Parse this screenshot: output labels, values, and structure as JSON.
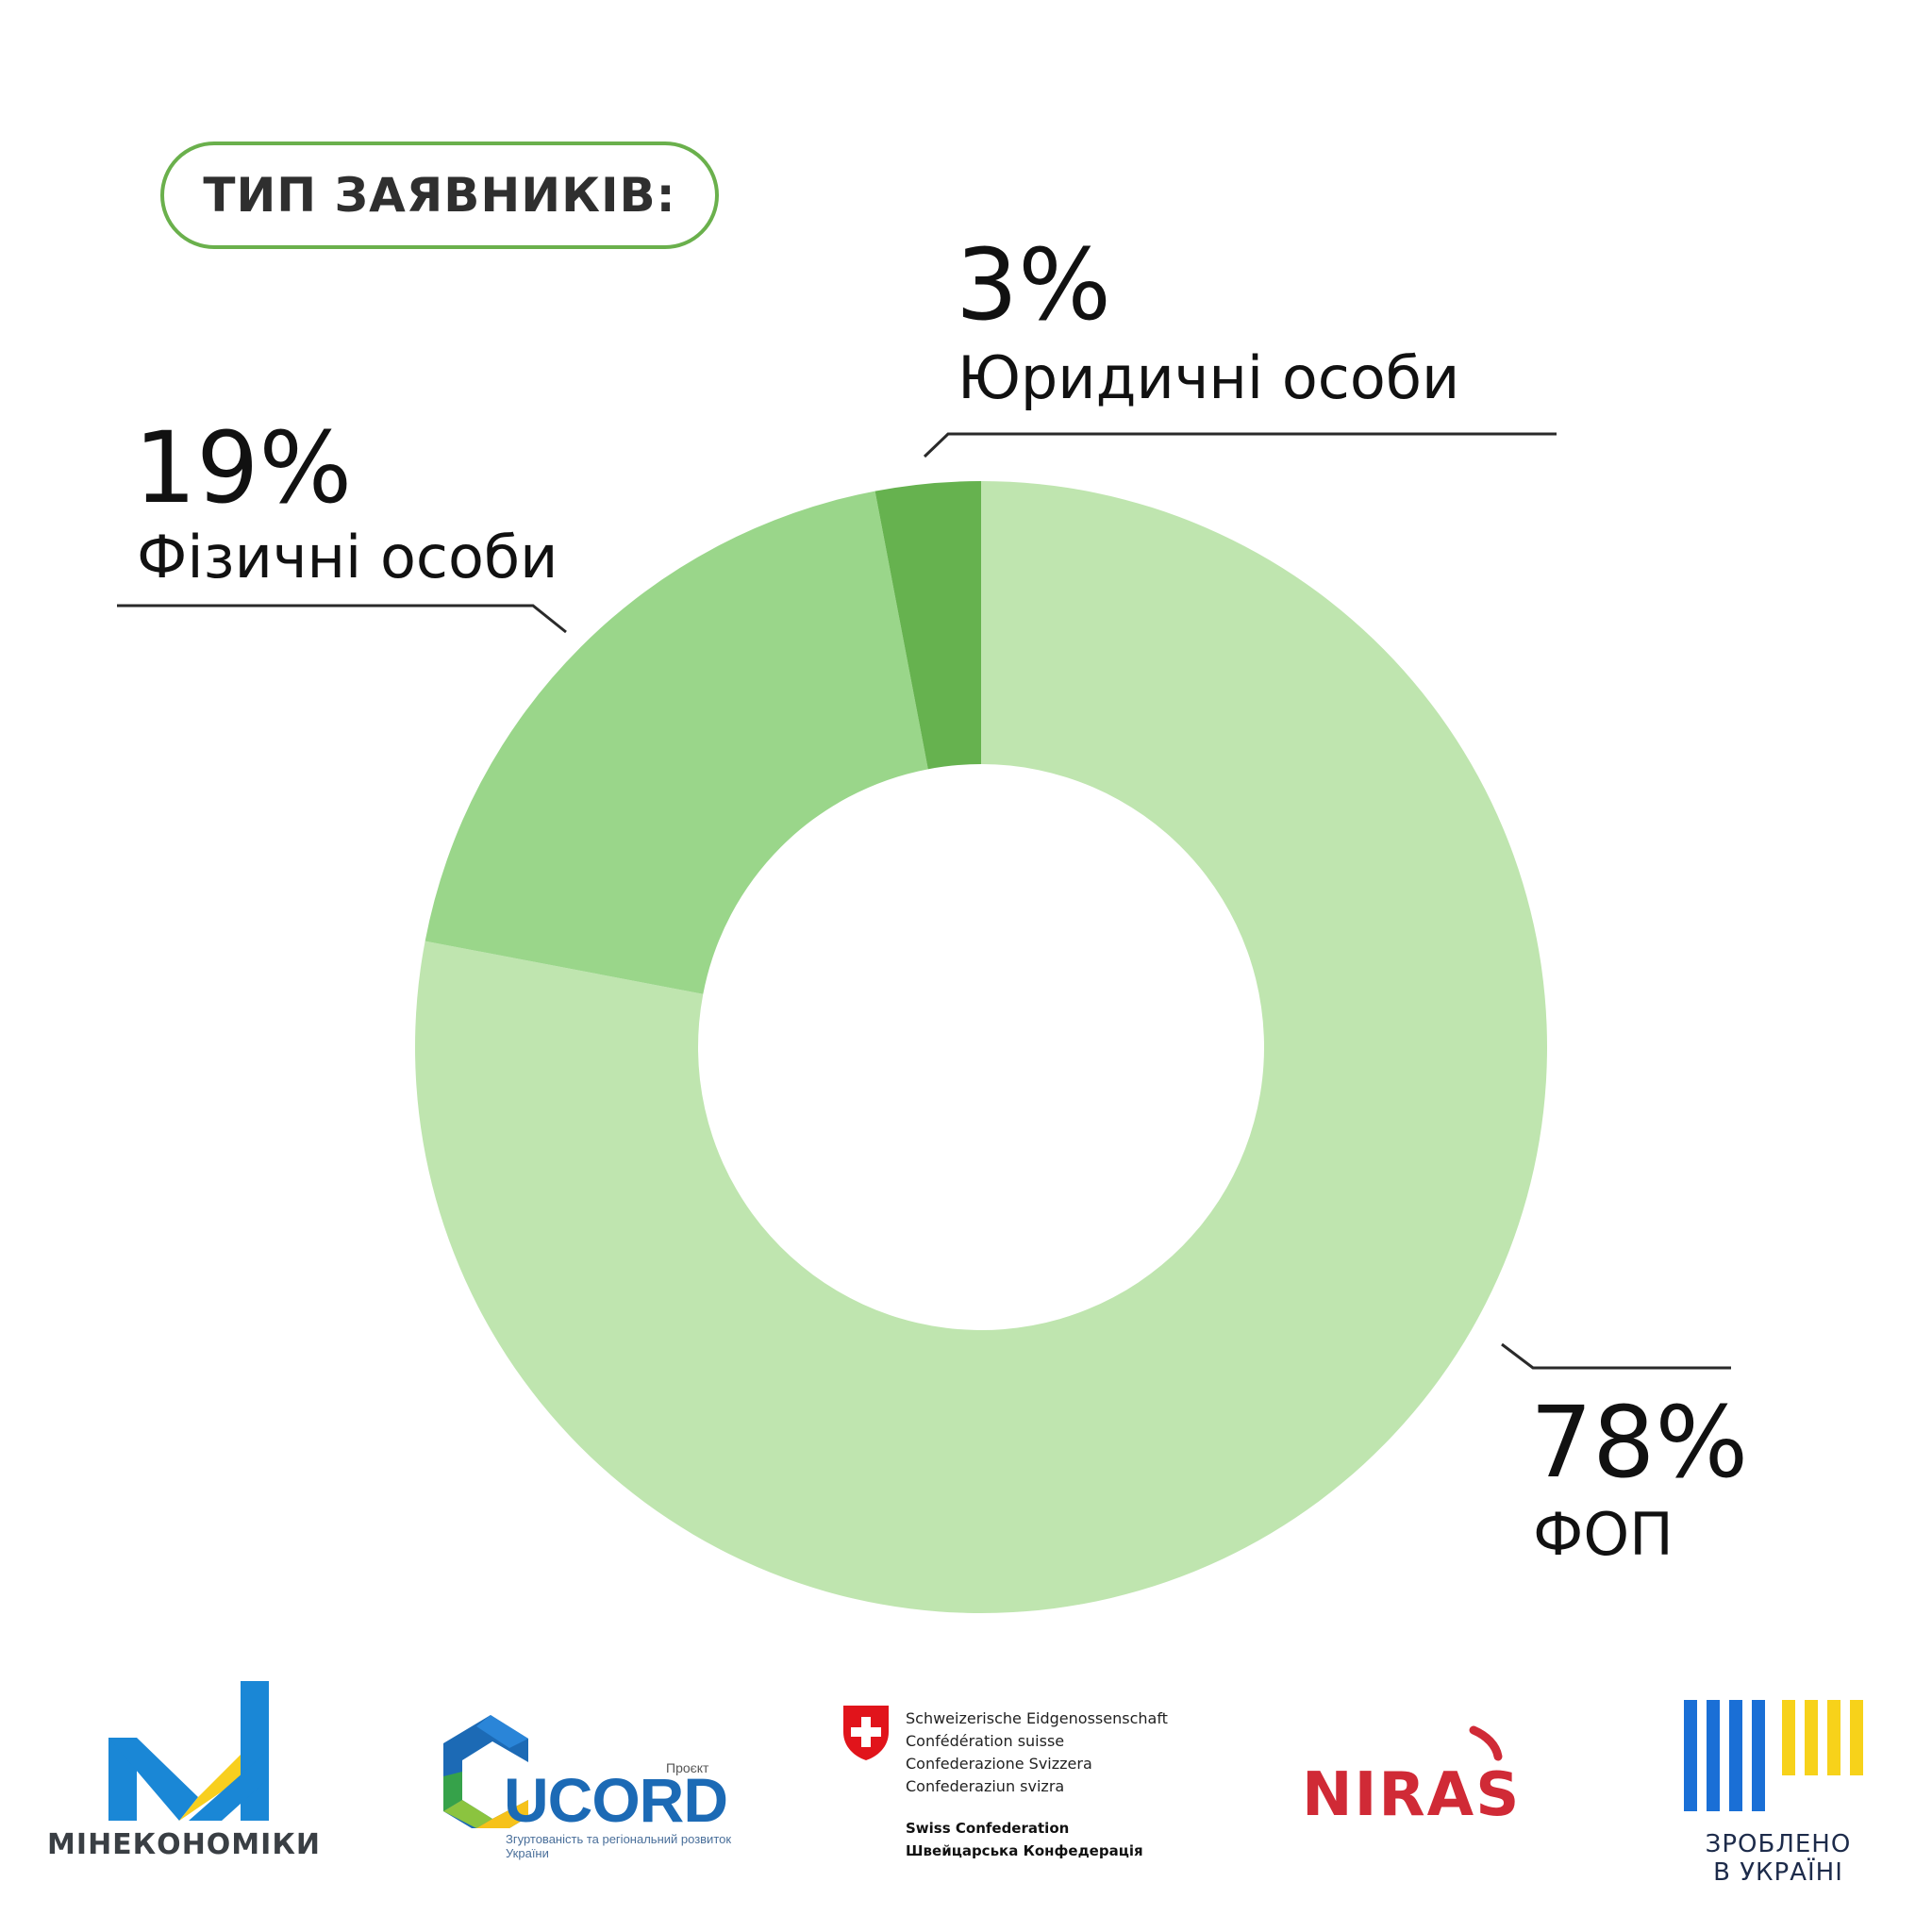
{
  "title": "ТИП ЗАЯВНИКІВ:",
  "chart_data": {
    "type": "pie",
    "variant": "donut",
    "title": "ТИП ЗАЯВНИКІВ:",
    "slices": [
      {
        "label": "ФОП",
        "value": 78,
        "display": "78%",
        "color": "#bfe5af"
      },
      {
        "label": "Фізичні особи",
        "value": 19,
        "display": "19%",
        "color": "#9ad68a"
      },
      {
        "label": "Юридичні особи",
        "value": 3,
        "display": "3%",
        "color": "#66b24f"
      }
    ],
    "start_angle": "12 o'clock",
    "direction": "clockwise",
    "legend": "none",
    "labels": "outside with leader lines"
  },
  "logos": {
    "mineconomy": {
      "text": "МІНЕКОНОМІКИ",
      "colors": [
        "#1a87d6",
        "#f8cf1e"
      ]
    },
    "ucord": {
      "project": "Проєкт",
      "name": "UCORD",
      "subtitle": "Згуртованість та регіональний розвиток України"
    },
    "swiss": {
      "lines": [
        "Schweizerische Eidgenossenschaft",
        "Confédération suisse",
        "Confederazione Svizzera",
        "Confederaziun svizra"
      ],
      "bold_lines": [
        "Swiss Confederation",
        "Швейцарська Конфедерація"
      ],
      "color": "#e1141b"
    },
    "niras": {
      "text": "NIRAS",
      "color": "#d02a36"
    },
    "made_in_ukraine": {
      "line1": "ЗРОБЛЕНО",
      "line2": "В УКРАЇНІ",
      "colors": [
        "#1a6fd6",
        "#f7d21a"
      ]
    }
  }
}
